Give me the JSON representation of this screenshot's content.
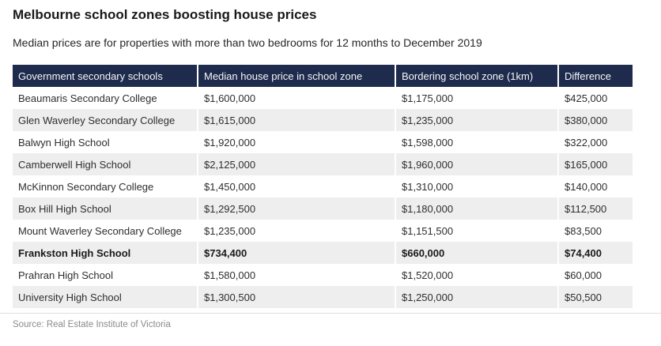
{
  "title": "Melbourne school zones boosting house prices",
  "subtitle": "Median prices are for properties with more than two bedrooms for 12 months to December 2019",
  "source": "Source: Real Estate Institute of Victoria",
  "colors": {
    "header_bg": "#1e2b4c",
    "header_text": "#f4f6f9",
    "row_alt": "#eeeeee"
  },
  "chart_data": {
    "type": "table",
    "title": "Melbourne school zones boosting house prices",
    "subtitle": "Median prices are for properties with more than two bedrooms for 12 months to December 2019",
    "source": "Source: Real Estate Institute of Victoria",
    "columns": [
      "Government secondary schools",
      "Median house price in school zone",
      "Bordering school zone (1km)",
      "Difference"
    ],
    "rows": [
      [
        "Beaumaris Secondary College",
        "$1,600,000",
        "$1,175,000",
        "$425,000"
      ],
      [
        "Glen Waverley Secondary College",
        "$1,615,000",
        "$1,235,000",
        "$380,000"
      ],
      [
        "Balwyn High School",
        "$1,920,000",
        "$1,598,000",
        "$322,000"
      ],
      [
        "Camberwell High School",
        "$2,125,000",
        "$1,960,000",
        "$165,000"
      ],
      [
        "McKinnon Secondary College",
        "$1,450,000",
        "$1,310,000",
        "$140,000"
      ],
      [
        "Box Hill High School",
        "$1,292,500",
        "$1,180,000",
        "$112,500"
      ],
      [
        "Mount Waverley Secondary College",
        "$1,235,000",
        "$1,151,500",
        "$83,500"
      ],
      [
        "Frankston High School",
        "$734,400",
        "$660,000",
        "$74,400"
      ],
      [
        "Prahran High School",
        "$1,580,000",
        "$1,520,000",
        "$60,000"
      ],
      [
        "University High School",
        "$1,300,500",
        "$1,250,000",
        "$50,500"
      ]
    ],
    "bold_row_index": 7
  }
}
